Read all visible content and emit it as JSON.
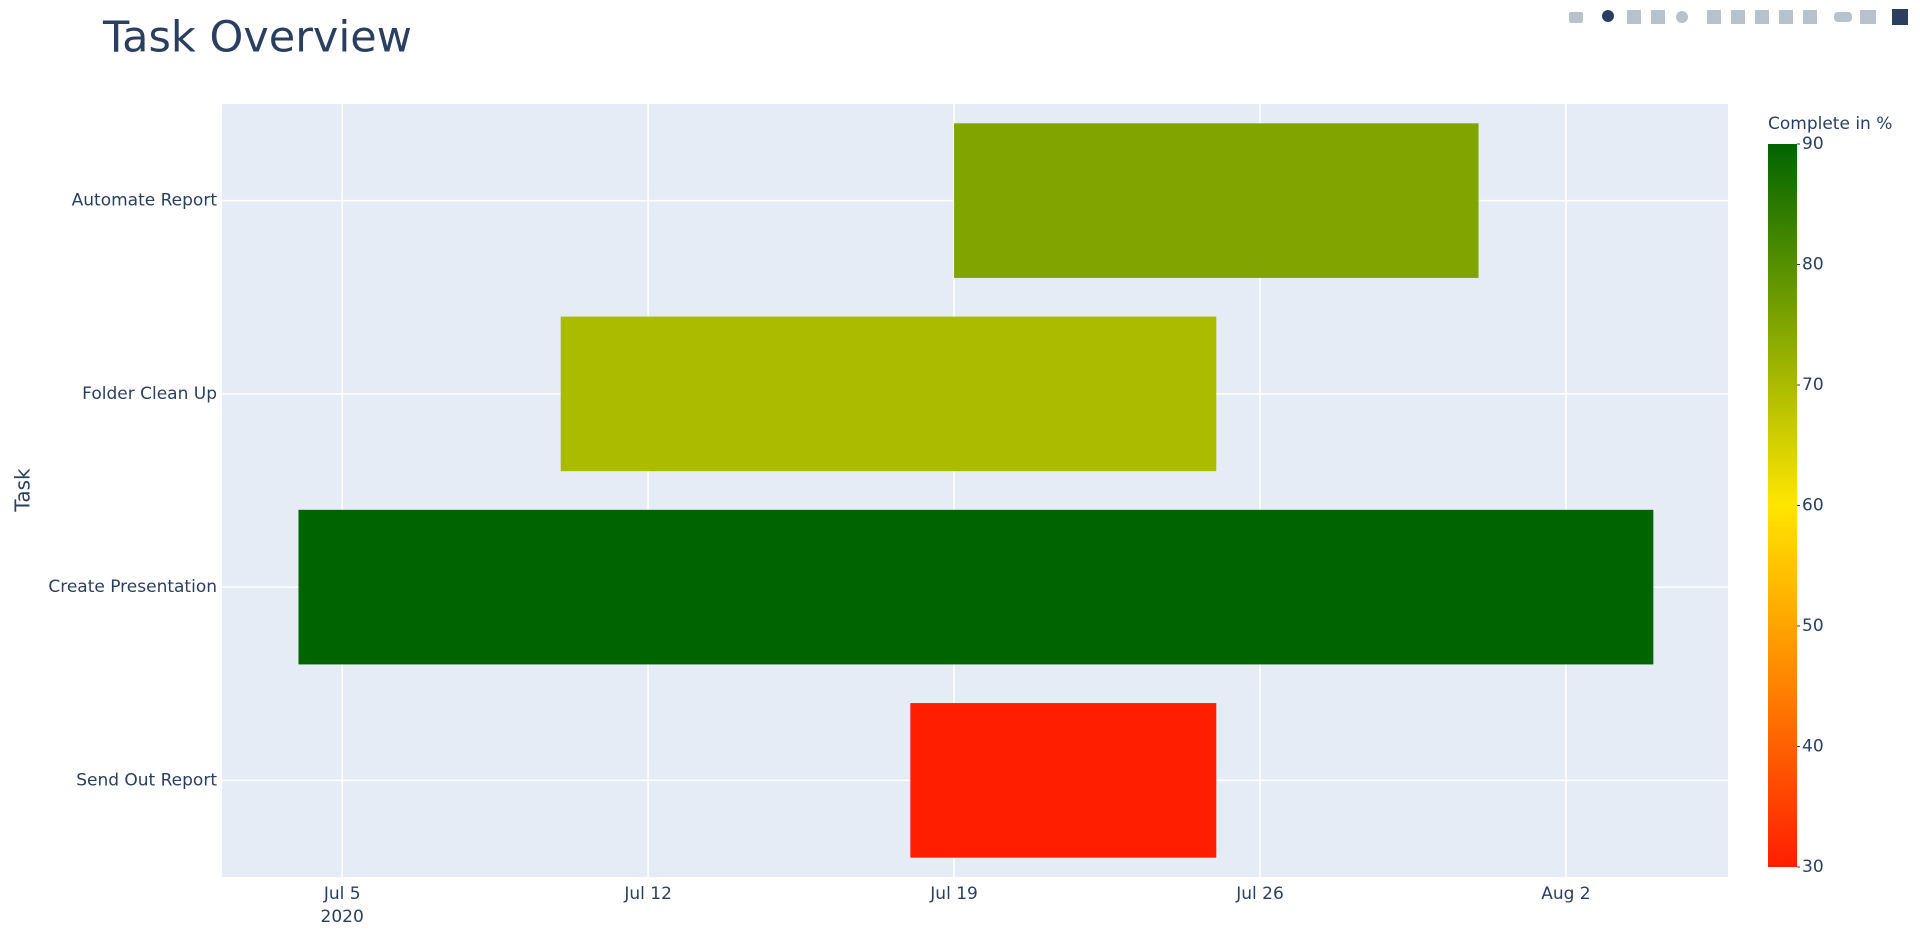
{
  "chart_data": {
    "type": "timeline",
    "title": "Task Overview",
    "y_label": "Task",
    "categories": [
      "Automate Report",
      "Folder Clean Up",
      "Create Presentation",
      "Send Out Report"
    ],
    "start": [
      "2020-07-19",
      "2020-07-10",
      "2020-07-04",
      "2020-07-18"
    ],
    "end": [
      "2020-07-31",
      "2020-07-25",
      "2020-08-04",
      "2020-07-25"
    ],
    "values": [
      75,
      70,
      90,
      30
    ],
    "xlim": [
      "2020-07-02T06:00:00Z",
      "2020-08-05T17:00:00Z"
    ],
    "xticks": [
      {
        "value": "2020-07-05",
        "label": "Jul 5"
      },
      {
        "value": "2020-07-12",
        "label": "Jul 12"
      },
      {
        "value": "2020-07-19",
        "label": "Jul 19"
      },
      {
        "value": "2020-07-26",
        "label": "Jul 26"
      },
      {
        "value": "2020-08-02",
        "label": "Aug 2"
      }
    ],
    "xtick_year": "2020",
    "grid": true,
    "colorbar_title": "Complete in %",
    "clim": [
      30,
      90
    ],
    "cticks": [
      30,
      40,
      50,
      60,
      70,
      80,
      90
    ],
    "colorscale": [
      [
        30,
        "#ff1e00"
      ],
      [
        60,
        "#ffe600"
      ],
      [
        90,
        "#006400"
      ]
    ]
  }
}
